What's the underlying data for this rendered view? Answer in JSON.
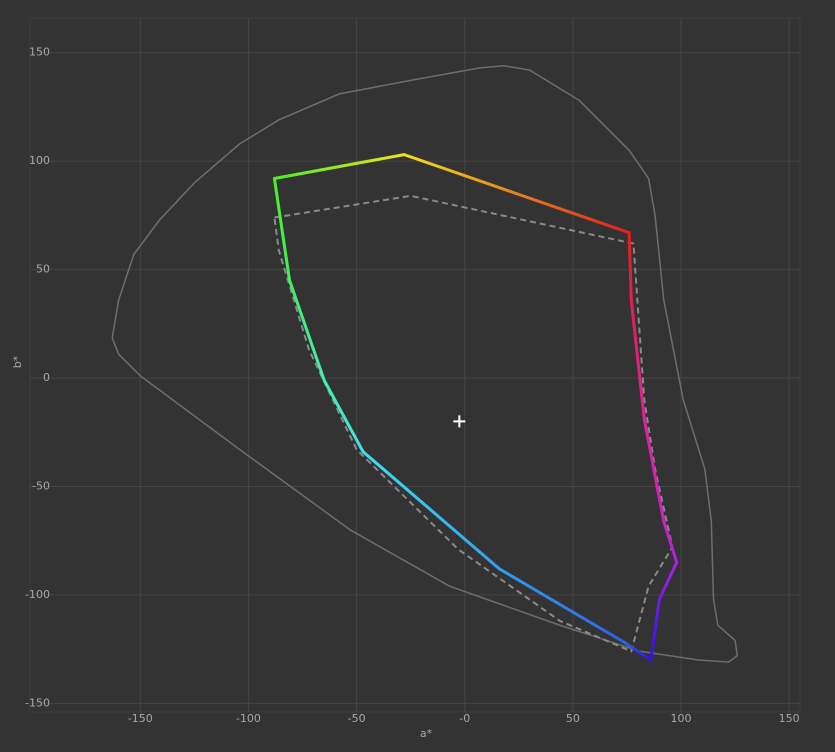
{
  "chart_data": {
    "type": "line",
    "x_label": "a*",
    "y_label": "b*",
    "xlim": [
      -201,
      155
    ],
    "ylim": [
      -154,
      166
    ],
    "xticks": [
      -150,
      -100,
      -50,
      {
        "value": 0,
        "label": "-0"
      },
      50,
      100,
      150
    ],
    "yticks": [
      -150,
      -100,
      -50,
      0,
      50,
      100,
      150
    ],
    "grid": true,
    "series": [
      {
        "color": "#6e6e6e",
        "style": "solid",
        "x": [
          -163,
          -160,
          -153,
          -141,
          -125,
          -104,
          -86,
          -58,
          -21,
          7,
          18,
          30,
          53,
          76,
          85,
          88,
          92,
          101,
          111,
          114,
          115,
          117,
          125,
          126,
          122,
          108,
          81,
          44,
          -7,
          -53,
          -104,
          -150,
          -160,
          -163
        ],
        "values": [
          18.5,
          36,
          57,
          73,
          90,
          108,
          119,
          131,
          138,
          143,
          144,
          142,
          128,
          105,
          92,
          75,
          36,
          -10,
          -42,
          -66,
          -102,
          -114,
          -121,
          -128,
          -131,
          -130,
          -126,
          -114,
          -96,
          -70,
          -33,
          1,
          11,
          18.5
        ]
      },
      {
        "color": "#8a8a8a",
        "style": "dashed",
        "x": [
          -88,
          -25,
          78,
          83,
          88,
          96,
          85,
          77,
          44,
          -3,
          -50,
          -72,
          -86,
          -88
        ],
        "values": [
          74,
          84,
          62,
          -10,
          -42,
          -78,
          -96,
          -126,
          -112,
          -79,
          -33,
          13,
          59,
          74
        ]
      },
      {
        "style": "gradient",
        "colors": [
          "#4cf020",
          "#f0e020",
          "#e02020",
          "#e02050",
          "#e020a0",
          "#d020c0",
          "#b020e0",
          "#7020e0",
          "#3010e0",
          "#3060e0",
          "#30a0f0",
          "#40e0f0",
          "#40f0b0",
          "#40f060",
          "#4cf020"
        ],
        "x": [
          -88,
          -28,
          76,
          77,
          83,
          92,
          98,
          90,
          86,
          74,
          16,
          -47,
          -65,
          -81,
          -88
        ],
        "values": [
          92,
          103,
          67,
          36,
          -19,
          -66,
          -85,
          -102,
          -130,
          -122,
          -88,
          -34,
          -1,
          45,
          92
        ]
      }
    ],
    "white_point": {
      "x": -2.5,
      "y": -20,
      "color": "#ffffff"
    }
  }
}
